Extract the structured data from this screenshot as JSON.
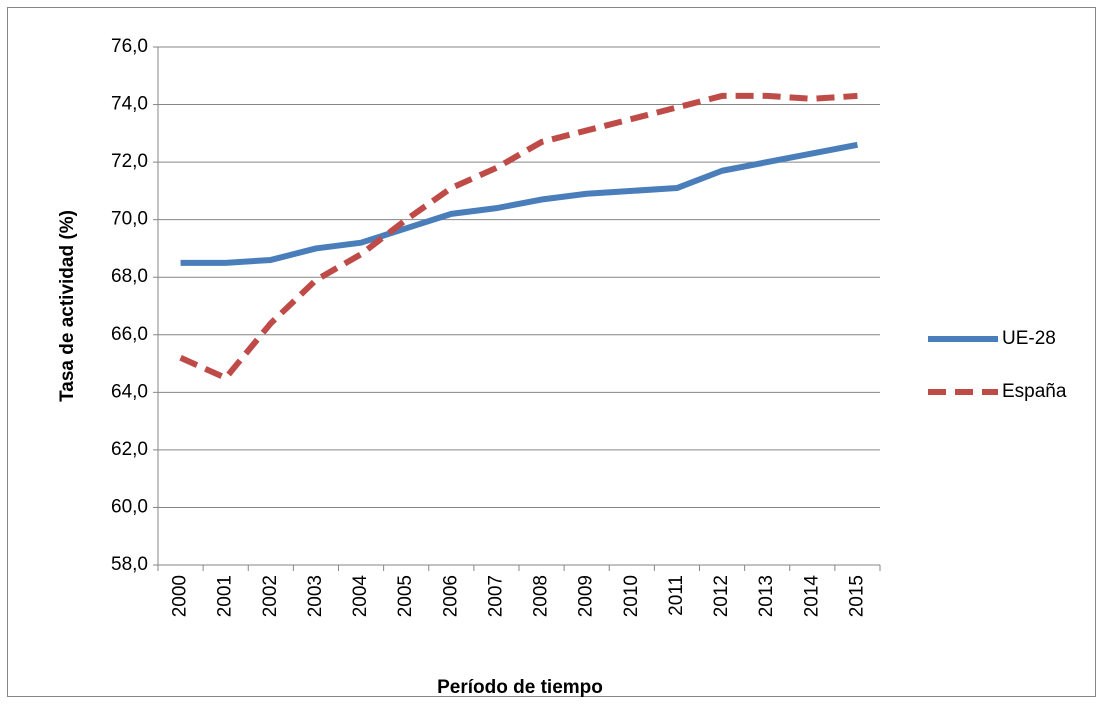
{
  "chart_data": {
    "type": "line",
    "y_label": "Tasa de actividad (%)",
    "x_label": "Período de tiempo",
    "categories": [
      "2000",
      "2001",
      "2002",
      "2003",
      "2004",
      "2005",
      "2006",
      "2007",
      "2008",
      "2009",
      "2010",
      "2011",
      "2012",
      "2013",
      "2014",
      "2015"
    ],
    "series": [
      {
        "name": "UE-28",
        "color": "#4a7ebb",
        "dash": false,
        "values": [
          68.5,
          68.5,
          68.6,
          69.0,
          69.2,
          69.7,
          70.2,
          70.4,
          70.7,
          70.9,
          71.0,
          71.1,
          71.7,
          72.0,
          72.3,
          72.6
        ]
      },
      {
        "name": "España",
        "color": "#be4b48",
        "dash": true,
        "values": [
          65.2,
          64.5,
          66.4,
          67.9,
          68.8,
          70.0,
          71.1,
          71.8,
          72.7,
          73.1,
          73.5,
          73.9,
          74.3,
          74.3,
          74.2,
          74.3
        ]
      }
    ],
    "ylim": [
      58,
      76
    ],
    "yticks": [
      {
        "value": 58,
        "label": "58,0"
      },
      {
        "value": 60,
        "label": "60,0"
      },
      {
        "value": 62,
        "label": "62,0"
      },
      {
        "value": 64,
        "label": "64,0"
      },
      {
        "value": 66,
        "label": "66,0"
      },
      {
        "value": 68,
        "label": "68,0"
      },
      {
        "value": 70,
        "label": "70,0"
      },
      {
        "value": 72,
        "label": "72,0"
      },
      {
        "value": 74,
        "label": "74,0"
      },
      {
        "value": 76,
        "label": "76,0"
      }
    ],
    "grid": true,
    "legend": "right"
  }
}
